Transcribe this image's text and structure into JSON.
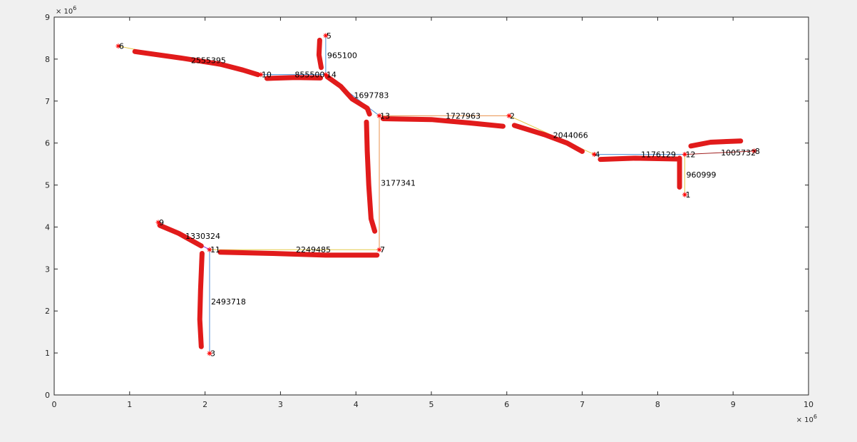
{
  "chart_data": {
    "type": "scatter",
    "title": "",
    "xlabel": "",
    "ylabel": "",
    "xlim": [
      0,
      10000000
    ],
    "ylim": [
      0,
      9000000
    ],
    "x_ticks": [
      0,
      1,
      2,
      3,
      4,
      5,
      6,
      7,
      8,
      9,
      10
    ],
    "y_ticks": [
      0,
      1,
      2,
      3,
      4,
      5,
      6,
      7,
      8,
      9
    ],
    "x_exponent": "× 10^6",
    "y_exponent": "× 10^6",
    "grid": false,
    "marker": "*",
    "colors": {
      "marker": "#ff0000",
      "annotation": "#e11b1b",
      "axis": "#262626",
      "edge_blue": "#4a90d9",
      "edge_orange": "#e8914a",
      "edge_yellow": "#e6c94a",
      "edge_purple": "#8a2be2",
      "edge_red": "#a02020"
    },
    "nodes": [
      {
        "id": "1",
        "x": 8360000,
        "y": 4770000
      },
      {
        "id": "2",
        "x": 6030000,
        "y": 6650000
      },
      {
        "id": "3",
        "x": 2060000,
        "y": 990000
      },
      {
        "id": "4",
        "x": 7160000,
        "y": 5730000
      },
      {
        "id": "5",
        "x": 3600000,
        "y": 8560000
      },
      {
        "id": "6",
        "x": 850000,
        "y": 8310000
      },
      {
        "id": "7",
        "x": 4310000,
        "y": 3460000
      },
      {
        "id": "8",
        "x": 9280000,
        "y": 5810000
      },
      {
        "id": "9",
        "x": 1380000,
        "y": 4110000
      },
      {
        "id": "10",
        "x": 2740000,
        "y": 7630000
      },
      {
        "id": "11",
        "x": 2060000,
        "y": 3460000
      },
      {
        "id": "12",
        "x": 8360000,
        "y": 5730000
      },
      {
        "id": "13",
        "x": 4310000,
        "y": 6650000
      },
      {
        "id": "14",
        "x": 3600000,
        "y": 7630000
      }
    ],
    "edges": [
      {
        "from": "6",
        "to": "10",
        "label": "2555395",
        "color": "#e6c94a"
      },
      {
        "from": "10",
        "to": "14",
        "label": "855500",
        "color": "#4a90d9"
      },
      {
        "from": "5",
        "to": "14",
        "label": "965100",
        "color": "#4a90d9"
      },
      {
        "from": "14",
        "to": "13",
        "label": "1697783",
        "color": "#4a90d9"
      },
      {
        "from": "13",
        "to": "2",
        "label": "1727963",
        "color": "#e8914a"
      },
      {
        "from": "2",
        "to": "4",
        "label": "2044066",
        "color": "#e6c94a"
      },
      {
        "from": "4",
        "to": "12",
        "label": "1176129",
        "color": "#4a90d9"
      },
      {
        "from": "12",
        "to": "8",
        "label": "1005732",
        "color": "#a02020"
      },
      {
        "from": "12",
        "to": "1",
        "label": "960999",
        "color": "#e6c94a"
      },
      {
        "from": "13",
        "to": "7",
        "label": "3177341",
        "color": "#e8914a"
      },
      {
        "from": "7",
        "to": "11",
        "label": "2249485",
        "color": "#e6c94a"
      },
      {
        "from": "9",
        "to": "11",
        "label": "1330324",
        "color": "#8a2be2"
      },
      {
        "from": "11",
        "to": "3",
        "label": "2493718",
        "color": "#4a90d9"
      }
    ],
    "annotations": [
      {
        "name": "stroke-6-10",
        "points": [
          [
            1070000,
            8180000
          ],
          [
            1700000,
            8020000
          ],
          [
            2200000,
            7880000
          ],
          [
            2500000,
            7740000
          ],
          [
            2700000,
            7630000
          ]
        ]
      },
      {
        "name": "stroke-10-14",
        "points": [
          [
            2820000,
            7540000
          ],
          [
            3200000,
            7560000
          ],
          [
            3530000,
            7550000
          ]
        ]
      },
      {
        "name": "stroke-5-14",
        "points": [
          [
            3520000,
            8450000
          ],
          [
            3510000,
            8100000
          ],
          [
            3540000,
            7800000
          ]
        ]
      },
      {
        "name": "stroke-14-13",
        "points": [
          [
            3620000,
            7580000
          ],
          [
            3800000,
            7350000
          ],
          [
            3950000,
            7050000
          ],
          [
            4150000,
            6830000
          ],
          [
            4180000,
            6690000
          ]
        ]
      },
      {
        "name": "stroke-13-2",
        "points": [
          [
            4360000,
            6580000
          ],
          [
            5000000,
            6560000
          ],
          [
            5500000,
            6480000
          ],
          [
            5950000,
            6400000
          ]
        ]
      },
      {
        "name": "stroke-2-4",
        "points": [
          [
            6100000,
            6420000
          ],
          [
            6500000,
            6200000
          ],
          [
            6800000,
            6000000
          ],
          [
            7000000,
            5800000
          ]
        ]
      },
      {
        "name": "stroke-4-12",
        "points": [
          [
            7240000,
            5610000
          ],
          [
            7700000,
            5640000
          ],
          [
            8250000,
            5620000
          ]
        ]
      },
      {
        "name": "stroke-12-1",
        "points": [
          [
            8290000,
            5640000
          ],
          [
            8290000,
            5300000
          ],
          [
            8290000,
            4950000
          ]
        ]
      },
      {
        "name": "stroke-12-8",
        "points": [
          [
            8440000,
            5930000
          ],
          [
            8700000,
            6020000
          ],
          [
            9100000,
            6050000
          ]
        ]
      },
      {
        "name": "stroke-13-7",
        "points": [
          [
            4140000,
            6500000
          ],
          [
            4150000,
            5800000
          ],
          [
            4170000,
            5000000
          ],
          [
            4200000,
            4200000
          ],
          [
            4250000,
            3900000
          ]
        ]
      },
      {
        "name": "stroke-7-11",
        "points": [
          [
            4280000,
            3330000
          ],
          [
            3600000,
            3330000
          ],
          [
            2900000,
            3370000
          ],
          [
            2200000,
            3400000
          ]
        ]
      },
      {
        "name": "stroke-9-11",
        "points": [
          [
            1400000,
            4040000
          ],
          [
            1650000,
            3850000
          ],
          [
            1950000,
            3550000
          ]
        ]
      },
      {
        "name": "stroke-11-3",
        "points": [
          [
            1960000,
            3370000
          ],
          [
            1940000,
            2500000
          ],
          [
            1930000,
            1800000
          ],
          [
            1950000,
            1150000
          ]
        ]
      }
    ]
  }
}
